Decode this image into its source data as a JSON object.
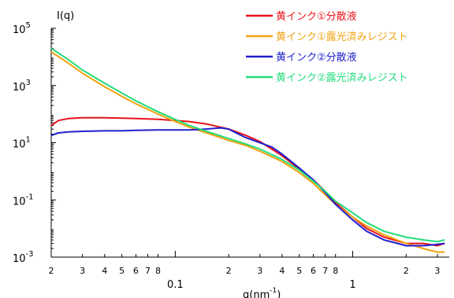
{
  "chart_data": {
    "type": "line",
    "xlabel_main": "q(nm",
    "xlabel_sup": "-1",
    "xlabel_tail": ")",
    "ylabel": "I(q)",
    "xscale": "log",
    "yscale": "log",
    "xlim": [
      0.02,
      3.5
    ],
    "ylim": [
      0.001,
      100000
    ],
    "legend_position": "top-right",
    "x_major_ticks": [
      {
        "value": 0.1,
        "label": "0.1"
      },
      {
        "value": 1,
        "label": "1"
      }
    ],
    "x_minor_ticks": [
      {
        "value": 0.02,
        "label": "2"
      },
      {
        "value": 0.03,
        "label": "3"
      },
      {
        "value": 0.04,
        "label": "4"
      },
      {
        "value": 0.05,
        "label": "5"
      },
      {
        "value": 0.06,
        "label": "6"
      },
      {
        "value": 0.07,
        "label": "7"
      },
      {
        "value": 0.08,
        "label": "8"
      },
      {
        "value": 0.2,
        "label": "2"
      },
      {
        "value": 0.3,
        "label": "3"
      },
      {
        "value": 0.4,
        "label": "4"
      },
      {
        "value": 0.5,
        "label": "5"
      },
      {
        "value": 0.6,
        "label": "6"
      },
      {
        "value": 0.7,
        "label": "7"
      },
      {
        "value": 0.8,
        "label": "8"
      },
      {
        "value": 2,
        "label": "2"
      },
      {
        "value": 3,
        "label": "3"
      }
    ],
    "y_ticks": [
      {
        "value": 0.001,
        "base": "10",
        "exp": "-3"
      },
      {
        "value": 0.1,
        "base": "10",
        "exp": "-1"
      },
      {
        "value": 10,
        "base": "10",
        "exp": "1"
      },
      {
        "value": 1000,
        "base": "10",
        "exp": "3"
      },
      {
        "value": 100000,
        "base": "10",
        "exp": "5"
      }
    ],
    "series": [
      {
        "name": "黄インク①分散液",
        "color": "#e8121b",
        "x": [
          0.02,
          0.022,
          0.025,
          0.03,
          0.04,
          0.05,
          0.06,
          0.07,
          0.08,
          0.1,
          0.12,
          0.15,
          0.2,
          0.25,
          0.3,
          0.35,
          0.4,
          0.5,
          0.6,
          0.7,
          0.8,
          1.0,
          1.2,
          1.5,
          2.0,
          2.5,
          3.0,
          3.3
        ],
        "y": [
          40,
          60,
          70,
          75,
          75,
          72,
          70,
          68,
          66,
          60,
          55,
          45,
          30,
          18,
          11,
          6,
          3.5,
          1.2,
          0.5,
          0.2,
          0.08,
          0.025,
          0.01,
          0.005,
          0.003,
          0.003,
          0.0025,
          0.003
        ]
      },
      {
        "name": "黄インク①露光済みレジスト",
        "color": "#f2a20f",
        "x": [
          0.02,
          0.025,
          0.03,
          0.04,
          0.05,
          0.06,
          0.08,
          0.1,
          0.12,
          0.15,
          0.2,
          0.25,
          0.3,
          0.4,
          0.5,
          0.6,
          0.7,
          0.8,
          1.0,
          1.2,
          1.5,
          2.0,
          2.5,
          3.0,
          3.3
        ],
        "y": [
          15000,
          6000,
          2700,
          900,
          420,
          230,
          100,
          55,
          35,
          22,
          12,
          8,
          5,
          2.2,
          0.9,
          0.38,
          0.15,
          0.07,
          0.025,
          0.012,
          0.006,
          0.003,
          0.002,
          0.0015,
          0.0015
        ]
      },
      {
        "name": "黄インク②分散液",
        "color": "#2020cc",
        "x": [
          0.02,
          0.022,
          0.025,
          0.03,
          0.04,
          0.05,
          0.06,
          0.08,
          0.1,
          0.12,
          0.15,
          0.18,
          0.2,
          0.22,
          0.25,
          0.3,
          0.35,
          0.4,
          0.5,
          0.6,
          0.7,
          0.8,
          1.0,
          1.2,
          1.5,
          2.0,
          2.5,
          3.0,
          3.3
        ],
        "y": [
          18,
          22,
          24,
          25,
          26,
          26,
          27,
          28,
          28,
          28,
          30,
          33,
          30,
          22,
          15,
          10,
          7,
          4,
          1.3,
          0.5,
          0.18,
          0.07,
          0.02,
          0.008,
          0.004,
          0.0025,
          0.0025,
          0.0028,
          0.003
        ]
      },
      {
        "name": "黄インク②露光済みレジスト",
        "color": "#22dd7a",
        "x": [
          0.02,
          0.025,
          0.03,
          0.04,
          0.05,
          0.06,
          0.08,
          0.1,
          0.12,
          0.15,
          0.2,
          0.25,
          0.3,
          0.4,
          0.5,
          0.6,
          0.7,
          0.8,
          1.0,
          1.2,
          1.5,
          2.0,
          2.5,
          3.0,
          3.3
        ],
        "y": [
          20000,
          8000,
          3500,
          1200,
          550,
          290,
          120,
          65,
          40,
          25,
          14,
          9,
          6,
          2.6,
          1.1,
          0.45,
          0.2,
          0.09,
          0.035,
          0.016,
          0.008,
          0.005,
          0.004,
          0.0035,
          0.004
        ]
      }
    ]
  }
}
